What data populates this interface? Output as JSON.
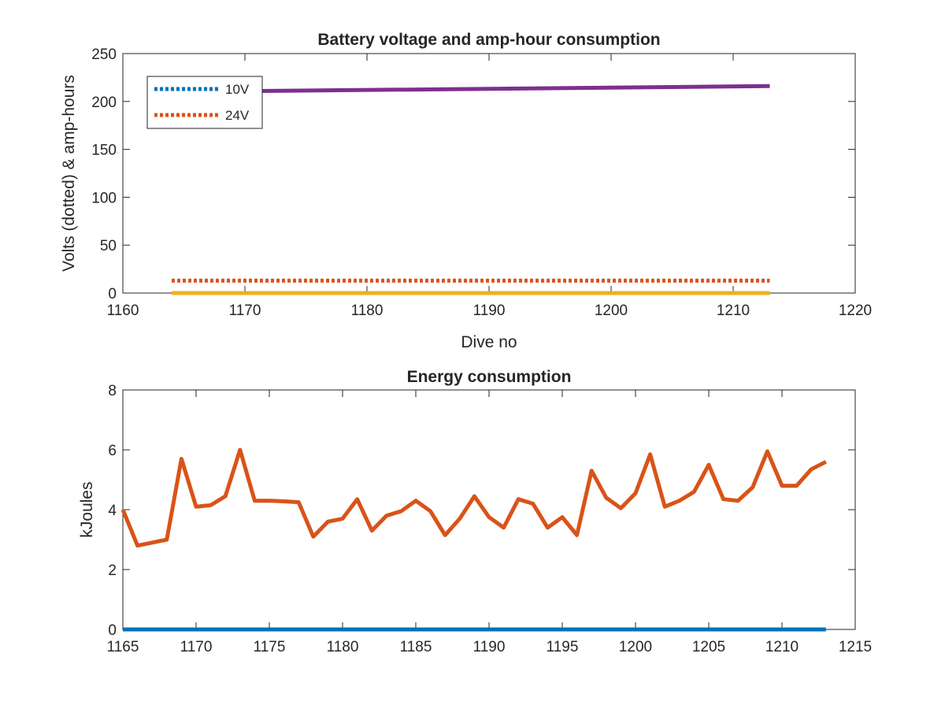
{
  "chart_data": [
    {
      "type": "line",
      "title": "Battery voltage and amp-hour consumption",
      "xlabel": "Dive no",
      "ylabel": "Volts (dotted) & amp-hours",
      "xlim": [
        1160,
        1220
      ],
      "ylim": [
        0,
        250
      ],
      "xticks": [
        1160,
        1170,
        1180,
        1190,
        1200,
        1210,
        1220
      ],
      "yticks": [
        0,
        50,
        100,
        150,
        200,
        250
      ],
      "grid": false,
      "legend_position": "top-left",
      "series": [
        {
          "name": "10V",
          "style": "dotted",
          "color": "#0072BD",
          "x": [
            1164,
            1213
          ],
          "y": [
            0,
            0
          ]
        },
        {
          "name": "24V",
          "style": "dotted",
          "color": "#D95319",
          "x": [
            1164,
            1213
          ],
          "y": [
            13,
            13
          ]
        },
        {
          "style": "solid",
          "color": "#EDB120",
          "x": [
            1164,
            1213
          ],
          "y": [
            0,
            0
          ]
        },
        {
          "style": "solid",
          "color": "#7E2F8E",
          "x": [
            1164,
            1213
          ],
          "y": [
            210,
            216
          ]
        }
      ]
    },
    {
      "type": "line",
      "title": "Energy consumption",
      "xlabel": "",
      "ylabel": "kJoules",
      "xlim": [
        1165,
        1215
      ],
      "ylim": [
        0,
        8
      ],
      "xticks": [
        1165,
        1170,
        1175,
        1180,
        1185,
        1190,
        1195,
        1200,
        1205,
        1210,
        1215
      ],
      "yticks": [
        0,
        2,
        4,
        6,
        8
      ],
      "grid": false,
      "series": [
        {
          "style": "solid",
          "color": "#0072BD",
          "x": [
            1165,
            1213
          ],
          "y": [
            0,
            0
          ]
        },
        {
          "style": "solid",
          "color": "#D95319",
          "x": [
            1165,
            1166,
            1167,
            1168,
            1169,
            1170,
            1171,
            1172,
            1173,
            1174,
            1175,
            1176,
            1177,
            1178,
            1179,
            1180,
            1181,
            1182,
            1183,
            1184,
            1185,
            1186,
            1187,
            1188,
            1189,
            1190,
            1191,
            1192,
            1193,
            1194,
            1195,
            1196,
            1197,
            1198,
            1199,
            1200,
            1201,
            1202,
            1203,
            1204,
            1205,
            1206,
            1207,
            1208,
            1209,
            1210,
            1211,
            1212,
            1213
          ],
          "y": [
            4.0,
            2.8,
            2.9,
            3.0,
            5.7,
            4.1,
            4.15,
            4.45,
            6.0,
            4.3,
            4.3,
            4.28,
            4.25,
            3.1,
            3.6,
            3.7,
            4.35,
            3.3,
            3.8,
            3.95,
            4.3,
            3.95,
            3.15,
            3.7,
            4.45,
            3.75,
            3.4,
            4.35,
            4.2,
            3.4,
            3.75,
            3.15,
            5.3,
            4.4,
            4.05,
            4.55,
            5.85,
            4.1,
            4.3,
            4.6,
            5.5,
            4.35,
            4.3,
            4.75,
            5.95,
            4.8,
            4.8,
            5.35,
            5.6
          ]
        }
      ]
    }
  ]
}
